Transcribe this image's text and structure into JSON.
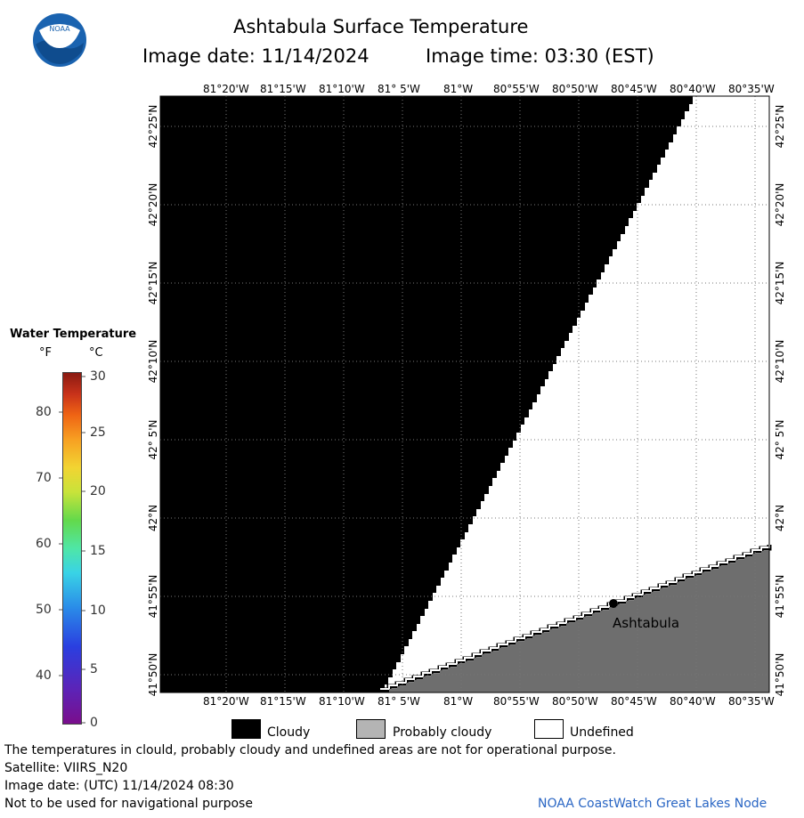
{
  "header": {
    "title": "Ashtabula Surface Temperature",
    "image_date": "Image date: 11/14/2024",
    "image_time": "Image time: 03:30 (EST)"
  },
  "logo": {
    "text": "NOAA"
  },
  "map": {
    "lon_labels": [
      "81°20'W",
      "81°15'W",
      "81°10'W",
      "81° 5'W",
      "81°W",
      "80°55'W",
      "80°50'W",
      "80°45'W",
      "80°40'W",
      "80°35'W"
    ],
    "lat_labels": [
      "42°25'N",
      "42°20'N",
      "42°15'N",
      "42°10'N",
      "42° 5'N",
      "42°N",
      "41°55'N",
      "41°50'N"
    ],
    "place_label": "Ashtabula"
  },
  "colorbar": {
    "title": "Water Temperature",
    "unit_f": "°F",
    "unit_c": "°C",
    "f_ticks": [
      "80",
      "70",
      "60",
      "50",
      "40"
    ],
    "c_ticks": [
      "30",
      "25",
      "20",
      "15",
      "10",
      "5",
      "0"
    ]
  },
  "legend": {
    "cloudy": "Cloudy",
    "probably_cloudy": "Probably cloudy",
    "undefined": "Undefined",
    "colors": {
      "cloudy": "#000000",
      "probably_cloudy": "#b4b4b4",
      "undefined": "#ffffff",
      "land": "#6e6e6e"
    }
  },
  "footer": {
    "disclaimer": "The temperatures in clould, probably cloudy and undefined areas are not for operational purpose.",
    "satellite": "Satellite: VIIRS_N20",
    "utc_date": "Image date: (UTC) 11/14/2024  08:30",
    "navigation": "Not to be used for navigational purpose",
    "credit": "NOAA CoastWatch Great Lakes Node"
  }
}
